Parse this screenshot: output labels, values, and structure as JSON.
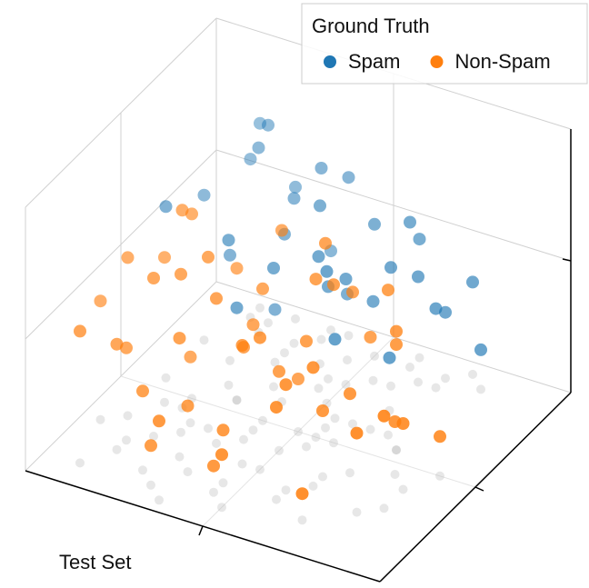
{
  "chart_data": {
    "type": "scatter3d",
    "legend_title": "Ground Truth",
    "xlabel": "Test Set",
    "xlim": [
      0,
      1
    ],
    "ylim": [
      0,
      1
    ],
    "zlim": [
      0,
      1
    ],
    "xticks": [
      0.5
    ],
    "yticks": [
      0.5
    ],
    "zticks": [
      0.5
    ],
    "grid": true,
    "legend_position": "upper right",
    "series": [
      {
        "name": "Spam",
        "color": "#1f77b4",
        "x": [
          0.15,
          0.2,
          0.25,
          0.3,
          0.35,
          0.1,
          0.2,
          0.3,
          0.4,
          0.45,
          0.5,
          0.55,
          0.6,
          0.65,
          0.7,
          0.25,
          0.35,
          0.45,
          0.55,
          0.15,
          0.3,
          0.4,
          0.5,
          0.6,
          0.7,
          0.75,
          0.2,
          0.35,
          0.5,
          0.65,
          0.8,
          0.1,
          0.45,
          0.6,
          0.3
        ],
        "y": [
          0.9,
          0.85,
          0.95,
          0.8,
          0.9,
          0.75,
          0.7,
          0.85,
          0.95,
          0.75,
          0.9,
          0.8,
          0.95,
          0.85,
          0.9,
          0.6,
          0.65,
          0.7,
          0.6,
          0.95,
          0.55,
          0.8,
          0.75,
          0.9,
          0.85,
          0.95,
          0.9,
          0.95,
          0.65,
          0.7,
          0.9,
          0.55,
          0.85,
          0.8,
          0.75
        ],
        "z": [
          0.6,
          0.7,
          0.5,
          0.45,
          0.65,
          0.55,
          0.4,
          0.55,
          0.6,
          0.35,
          0.5,
          0.3,
          0.45,
          0.4,
          0.25,
          0.55,
          0.45,
          0.5,
          0.3,
          0.7,
          0.35,
          0.6,
          0.4,
          0.55,
          0.3,
          0.35,
          0.75,
          0.3,
          0.5,
          0.2,
          0.15,
          0.65,
          0.25,
          0.45,
          0.2
        ]
      },
      {
        "name": "Non-Spam",
        "color": "#ff7f0e",
        "x": [
          0.1,
          0.15,
          0.2,
          0.25,
          0.3,
          0.35,
          0.4,
          0.45,
          0.5,
          0.55,
          0.6,
          0.65,
          0.7,
          0.75,
          0.8,
          0.85,
          0.9,
          0.2,
          0.3,
          0.4,
          0.5,
          0.6,
          0.7,
          0.8,
          0.15,
          0.25,
          0.35,
          0.45,
          0.55,
          0.65,
          0.75,
          0.85,
          0.1,
          0.2,
          0.3,
          0.4,
          0.5,
          0.6,
          0.7,
          0.05,
          0.25,
          0.45,
          0.65,
          0.35,
          0.55,
          0.15,
          0.4,
          0.6,
          0.3,
          0.5
        ],
        "y": [
          0.1,
          0.2,
          0.3,
          0.15,
          0.25,
          0.35,
          0.4,
          0.2,
          0.3,
          0.45,
          0.5,
          0.35,
          0.4,
          0.55,
          0.45,
          0.3,
          0.5,
          0.5,
          0.55,
          0.6,
          0.1,
          0.2,
          0.15,
          0.25,
          0.45,
          0.4,
          0.05,
          0.3,
          0.5,
          0.6,
          0.55,
          0.4,
          0.35,
          0.45,
          0.1,
          0.5,
          0.4,
          0.25,
          0.6,
          0.3,
          0.35,
          0.15,
          0.3,
          0.2,
          0.55,
          0.25,
          0.45,
          0.6,
          0.4,
          0.5
        ],
        "z": [
          0.5,
          0.4,
          0.6,
          0.3,
          0.45,
          0.55,
          0.35,
          0.2,
          0.5,
          0.4,
          0.6,
          0.25,
          0.3,
          0.45,
          0.2,
          0.35,
          0.15,
          0.7,
          0.5,
          0.65,
          0.2,
          0.35,
          0.1,
          0.3,
          0.55,
          0.25,
          0.3,
          0.45,
          0.6,
          0.35,
          0.4,
          0.25,
          0.6,
          0.75,
          0.15,
          0.5,
          0.3,
          0.4,
          0.55,
          0.45,
          0.6,
          0.1,
          0.45,
          0.25,
          0.7,
          0.35,
          0.4,
          0.5,
          0.65,
          0.2
        ]
      }
    ]
  }
}
